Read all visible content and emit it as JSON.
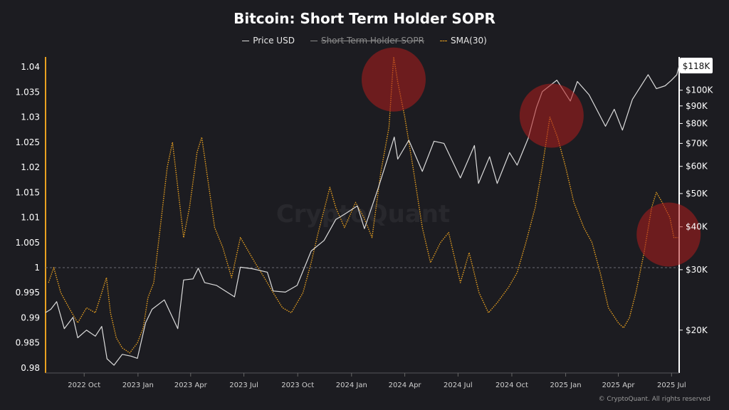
{
  "title": "Bitcoin: Short Term Holder SOPR",
  "legend": {
    "price": "Price USD",
    "sopr": "Short Term Holder SOPR",
    "sma": "SMA(30)"
  },
  "watermark": "CryptoQuant",
  "credit": "© CryptoQuant. All rights reserved",
  "colors": {
    "background": "#1c1c21",
    "price": "#dcdcdc",
    "sma": "#e8a020",
    "highlight": "#b01e1e"
  },
  "chart_data": {
    "type": "line",
    "title": "Bitcoin: Short Term Holder SOPR",
    "x_ticks": [
      "2022 Oct",
      "2023 Jan",
      "2023 Apr",
      "2023 Jul",
      "2023 Oct",
      "2024 Jan",
      "2024 Apr",
      "2024 Jul",
      "2024 Oct",
      "2025 Jan",
      "2025 Apr",
      "2025 Jul"
    ],
    "x_range": [
      "2022-07-27",
      "2025-07-14"
    ],
    "left_axis": {
      "ticks": [
        "1.04",
        "1.035",
        "1.03",
        "1.025",
        "1.02",
        "1.015",
        "1.01",
        "1.005",
        "1",
        "0.995",
        "0.99",
        "0.985",
        "0.98"
      ],
      "ylim": [
        0.979,
        1.042
      ],
      "reference_line": 1
    },
    "right_axis": {
      "scale": "log",
      "ticks": [
        "$20K",
        "$30K",
        "$40K",
        "$50K",
        "$60K",
        "$70K",
        "$80K",
        "$90K",
        "$100K"
      ],
      "tick_values": [
        20000,
        30000,
        40000,
        50000,
        60000,
        70000,
        80000,
        90000,
        100000
      ],
      "current_label": "$118K",
      "current_value": 118000,
      "ylim": [
        15000,
        125000
      ]
    },
    "series": [
      {
        "name": "SMA(30)",
        "axis": "left",
        "style": "dotted",
        "color": "#e8a020",
        "points": [
          [
            "2022-08-01",
            0.997
          ],
          [
            "2022-08-10",
            1.0
          ],
          [
            "2022-08-22",
            0.995
          ],
          [
            "2022-09-05",
            0.992
          ],
          [
            "2022-09-20",
            0.989
          ],
          [
            "2022-10-05",
            0.992
          ],
          [
            "2022-10-20",
            0.991
          ],
          [
            "2022-10-31",
            0.995
          ],
          [
            "2022-11-08",
            0.998
          ],
          [
            "2022-11-15",
            0.991
          ],
          [
            "2022-11-25",
            0.986
          ],
          [
            "2022-12-05",
            0.984
          ],
          [
            "2022-12-18",
            0.983
          ],
          [
            "2022-12-31",
            0.985
          ],
          [
            "2023-01-10",
            0.988
          ],
          [
            "2023-01-18",
            0.994
          ],
          [
            "2023-01-28",
            0.997
          ],
          [
            "2023-02-08",
            1.008
          ],
          [
            "2023-02-20",
            1.02
          ],
          [
            "2023-03-01",
            1.025
          ],
          [
            "2023-03-10",
            1.016
          ],
          [
            "2023-03-20",
            1.006
          ],
          [
            "2023-03-30",
            1.012
          ],
          [
            "2023-04-12",
            1.023
          ],
          [
            "2023-04-20",
            1.026
          ],
          [
            "2023-05-01",
            1.017
          ],
          [
            "2023-05-12",
            1.008
          ],
          [
            "2023-05-26",
            1.004
          ],
          [
            "2023-06-10",
            0.998
          ],
          [
            "2023-06-25",
            1.006
          ],
          [
            "2023-07-05",
            1.004
          ],
          [
            "2023-07-20",
            1.001
          ],
          [
            "2023-08-05",
            0.998
          ],
          [
            "2023-08-20",
            0.995
          ],
          [
            "2023-09-05",
            0.992
          ],
          [
            "2023-09-20",
            0.991
          ],
          [
            "2023-10-10",
            0.995
          ],
          [
            "2023-10-24",
            1.001
          ],
          [
            "2023-11-05",
            1.007
          ],
          [
            "2023-11-25",
            1.016
          ],
          [
            "2023-12-05",
            1.012
          ],
          [
            "2023-12-20",
            1.008
          ],
          [
            "2024-01-08",
            1.013
          ],
          [
            "2024-01-22",
            1.01
          ],
          [
            "2024-02-05",
            1.006
          ],
          [
            "2024-02-20",
            1.019
          ],
          [
            "2024-03-05",
            1.028
          ],
          [
            "2024-03-13",
            1.042
          ],
          [
            "2024-03-20",
            1.037
          ],
          [
            "2024-04-01",
            1.03
          ],
          [
            "2024-04-15",
            1.02
          ],
          [
            "2024-05-01",
            1.008
          ],
          [
            "2024-05-15",
            1.001
          ],
          [
            "2024-06-01",
            1.005
          ],
          [
            "2024-06-15",
            1.007
          ],
          [
            "2024-07-05",
            0.997
          ],
          [
            "2024-07-20",
            1.003
          ],
          [
            "2024-08-06",
            0.995
          ],
          [
            "2024-08-22",
            0.991
          ],
          [
            "2024-09-06",
            0.993
          ],
          [
            "2024-09-25",
            0.996
          ],
          [
            "2024-10-10",
            0.999
          ],
          [
            "2024-10-25",
            1.005
          ],
          [
            "2024-11-10",
            1.012
          ],
          [
            "2024-11-22",
            1.02
          ],
          [
            "2024-12-05",
            1.03
          ],
          [
            "2024-12-18",
            1.026
          ],
          [
            "2025-01-01",
            1.02
          ],
          [
            "2025-01-15",
            1.013
          ],
          [
            "2025-02-01",
            1.008
          ],
          [
            "2025-02-15",
            1.005
          ],
          [
            "2025-03-01",
            0.999
          ],
          [
            "2025-03-15",
            0.992
          ],
          [
            "2025-04-01",
            0.989
          ],
          [
            "2025-04-10",
            0.988
          ],
          [
            "2025-04-20",
            0.99
          ],
          [
            "2025-05-01",
            0.995
          ],
          [
            "2025-05-15",
            1.003
          ],
          [
            "2025-05-28",
            1.012
          ],
          [
            "2025-06-05",
            1.015
          ],
          [
            "2025-06-15",
            1.013
          ],
          [
            "2025-06-28",
            1.01
          ],
          [
            "2025-07-05",
            1.006
          ],
          [
            "2025-07-12",
            1.006
          ]
        ]
      },
      {
        "name": "Price USD",
        "axis": "right",
        "style": "solid",
        "color": "#dcdcdc",
        "points": [
          [
            "2022-07-27",
            22500
          ],
          [
            "2022-08-05",
            23000
          ],
          [
            "2022-08-15",
            24200
          ],
          [
            "2022-08-28",
            20200
          ],
          [
            "2022-09-12",
            21800
          ],
          [
            "2022-09-20",
            19000
          ],
          [
            "2022-10-05",
            20000
          ],
          [
            "2022-10-20",
            19200
          ],
          [
            "2022-10-31",
            20500
          ],
          [
            "2022-11-09",
            16500
          ],
          [
            "2022-11-21",
            15800
          ],
          [
            "2022-12-05",
            17000
          ],
          [
            "2022-12-20",
            16800
          ],
          [
            "2022-12-31",
            16550
          ],
          [
            "2023-01-14",
            21000
          ],
          [
            "2023-01-25",
            23000
          ],
          [
            "2023-02-15",
            24500
          ],
          [
            "2023-03-10",
            20200
          ],
          [
            "2023-03-20",
            28000
          ],
          [
            "2023-04-05",
            28200
          ],
          [
            "2023-04-14",
            30300
          ],
          [
            "2023-04-25",
            27500
          ],
          [
            "2023-05-15",
            27000
          ],
          [
            "2023-06-15",
            25000
          ],
          [
            "2023-06-25",
            30500
          ],
          [
            "2023-07-15",
            30200
          ],
          [
            "2023-08-10",
            29500
          ],
          [
            "2023-08-20",
            26000
          ],
          [
            "2023-09-10",
            25800
          ],
          [
            "2023-09-30",
            27000
          ],
          [
            "2023-10-24",
            34000
          ],
          [
            "2023-11-15",
            36500
          ],
          [
            "2023-12-05",
            42000
          ],
          [
            "2023-12-20",
            43500
          ],
          [
            "2024-01-11",
            46000
          ],
          [
            "2024-01-23",
            39500
          ],
          [
            "2024-02-15",
            51500
          ],
          [
            "2024-03-01",
            62000
          ],
          [
            "2024-03-14",
            73000
          ],
          [
            "2024-03-20",
            63000
          ],
          [
            "2024-04-08",
            71500
          ],
          [
            "2024-05-01",
            58000
          ],
          [
            "2024-05-21",
            71000
          ],
          [
            "2024-06-07",
            70000
          ],
          [
            "2024-07-05",
            55500
          ],
          [
            "2024-07-29",
            69000
          ],
          [
            "2024-08-05",
            53500
          ],
          [
            "2024-08-24",
            64000
          ],
          [
            "2024-09-06",
            53500
          ],
          [
            "2024-09-27",
            65800
          ],
          [
            "2024-10-10",
            60500
          ],
          [
            "2024-10-29",
            72500
          ],
          [
            "2024-11-12",
            89000
          ],
          [
            "2024-11-22",
            99000
          ],
          [
            "2024-12-17",
            107000
          ],
          [
            "2025-01-09",
            93000
          ],
          [
            "2025-01-21",
            106000
          ],
          [
            "2025-02-10",
            97000
          ],
          [
            "2025-03-10",
            78500
          ],
          [
            "2025-03-25",
            88000
          ],
          [
            "2025-04-08",
            76500
          ],
          [
            "2025-04-25",
            94000
          ],
          [
            "2025-05-22",
            111000
          ],
          [
            "2025-06-05",
            101000
          ],
          [
            "2025-06-20",
            103000
          ],
          [
            "2025-07-01",
            107000
          ],
          [
            "2025-07-10",
            111000
          ],
          [
            "2025-07-14",
            118000
          ]
        ]
      }
    ],
    "highlights": [
      {
        "date": "2024-03-13",
        "value": 1.0375
      },
      {
        "date": "2024-12-08",
        "value": 1.0303
      },
      {
        "date": "2025-06-26",
        "value": 1.0066
      }
    ]
  }
}
